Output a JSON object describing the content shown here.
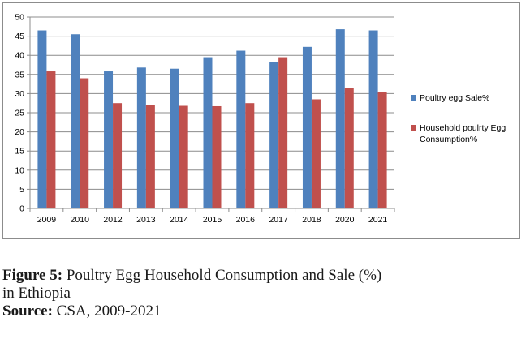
{
  "chart_data": {
    "type": "bar",
    "categories": [
      "2009",
      "2010",
      "2012",
      "2013",
      "2014",
      "2015",
      "2016",
      "2017",
      "2018",
      "2020",
      "2021"
    ],
    "series": [
      {
        "name": "Poultry egg Sale%",
        "color": "#4f81bd",
        "values": [
          46.5,
          45.5,
          35.8,
          36.8,
          36.5,
          39.5,
          41.2,
          38.2,
          42.2,
          46.8,
          46.5
        ]
      },
      {
        "name": "Household poulrty Egg Consumption%",
        "color": "#c0504d",
        "values": [
          35.8,
          34.0,
          27.5,
          27.0,
          26.8,
          26.7,
          27.5,
          39.5,
          28.5,
          31.4,
          30.3
        ]
      }
    ],
    "yticks": [
      "0",
      "5",
      "10",
      "15",
      "20",
      "25",
      "30",
      "35",
      "40",
      "45",
      "50"
    ],
    "ylim": [
      0,
      50
    ],
    "grid": true,
    "legend": "right",
    "legend_lines": [
      [
        "Poultry egg Sale%"
      ],
      [
        "Household poulrty Egg",
        "Consumption%"
      ]
    ]
  },
  "caption": {
    "figure_label": "Figure 5:",
    "figure_text": " Poultry Egg Household Consumption and Sale (%)",
    "figure_text_cont": "in Ethiopia",
    "source_label": "Source:",
    "source_text": " CSA, 2009-2021"
  }
}
